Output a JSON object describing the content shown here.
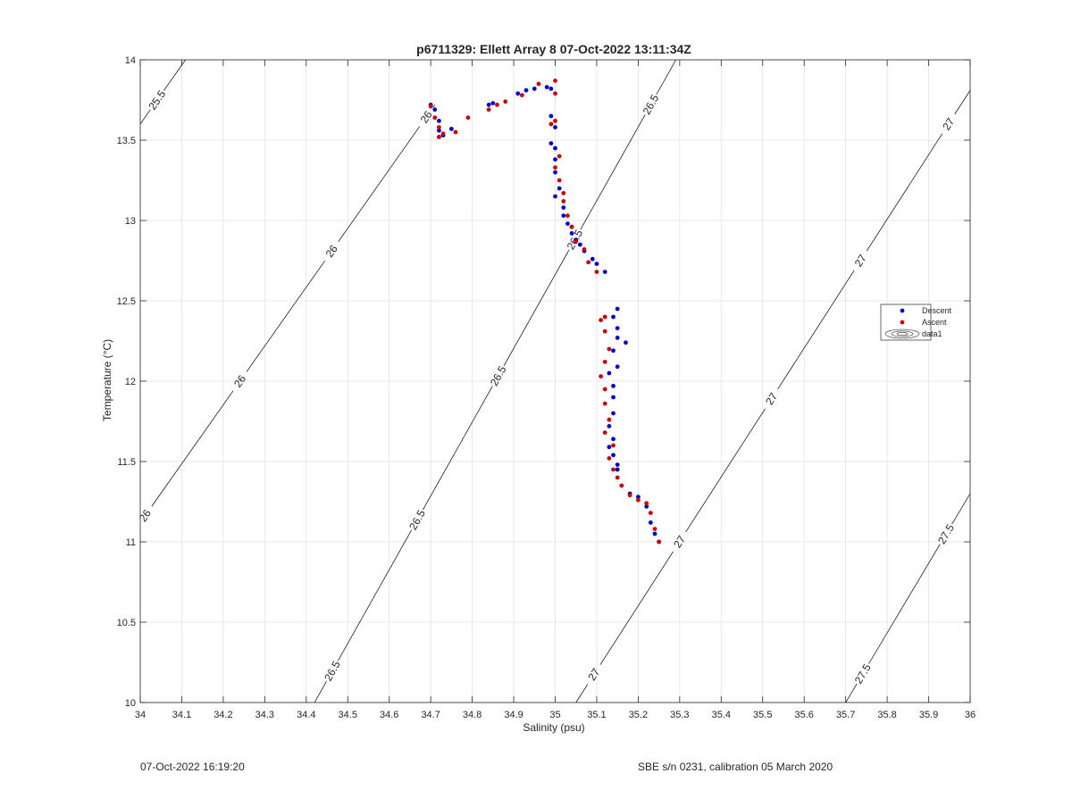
{
  "chart_data": {
    "type": "scatter",
    "title": "p6711329: Ellett Array 8 07-Oct-2022 13:11:34Z",
    "xlabel": "Salinity (psu)",
    "ylabel": "Temperature (°C)",
    "xlim": [
      34,
      36
    ],
    "ylim": [
      10,
      14
    ],
    "xticks": [
      "34",
      "34.1",
      "34.2",
      "34.3",
      "34.4",
      "34.5",
      "34.6",
      "34.7",
      "34.8",
      "34.9",
      "35",
      "35.1",
      "35.2",
      "35.3",
      "35.4",
      "35.5",
      "35.6",
      "35.7",
      "35.8",
      "35.9",
      "36"
    ],
    "yticks": [
      "10",
      "10.5",
      "11",
      "11.5",
      "12",
      "12.5",
      "13",
      "13.5",
      "14"
    ],
    "grid": true,
    "legend_position": "right",
    "legend": [
      "Descent",
      "Ascent",
      "data1"
    ],
    "colors": {
      "descent": "#0000cc",
      "ascent": "#cc0000",
      "contour": "#000000",
      "grid": "#e3e3e3"
    },
    "contours": [
      {
        "label": "25.5",
        "points": [
          [
            34.0,
            13.6
          ],
          [
            34.109,
            14.0
          ]
        ],
        "label_at": [
          [
            34.04,
            13.75
          ]
        ]
      },
      {
        "label": "26",
        "points": [
          [
            34.0,
            11.12
          ],
          [
            34.71,
            13.72
          ]
        ],
        "label_at": [
          [
            34.035,
            11.12
          ],
          [
            34.24,
            12.0
          ],
          [
            34.455,
            12.82
          ],
          [
            34.675,
            13.67
          ]
        ]
      },
      {
        "label": "26.5",
        "points": [
          [
            34.42,
            10.0
          ],
          [
            35.291,
            14.0
          ]
        ],
        "label_at": [
          [
            34.46,
            10.2
          ],
          [
            34.665,
            11.14
          ],
          [
            34.885,
            12.0
          ],
          [
            35.075,
            12.84
          ],
          [
            35.3,
            13.62
          ]
        ]
      },
      {
        "label": "27",
        "points": [
          [
            35.05,
            10.0
          ],
          [
            36.0,
            13.81
          ]
        ],
        "label_at": [
          [
            35.09,
            10.18
          ],
          [
            35.3,
            11.0
          ],
          [
            35.515,
            11.9
          ],
          [
            35.73,
            12.76
          ],
          [
            35.96,
            13.58
          ]
        ]
      },
      {
        "label": "27.5",
        "points": [
          [
            35.7,
            10.0
          ],
          [
            36.0,
            11.3
          ]
        ],
        "label_at": [
          [
            35.74,
            10.18
          ],
          [
            35.96,
            11.02
          ]
        ]
      }
    ],
    "series": [
      {
        "name": "Descent",
        "x": [
          34.7,
          34.71,
          34.72,
          34.72,
          34.73,
          34.72,
          34.75,
          34.84,
          34.85,
          34.91,
          34.93,
          34.95,
          34.98,
          34.99,
          34.99,
          35.0,
          34.99,
          35.0,
          35.0,
          35.0,
          35.01,
          35.0,
          35.02,
          35.02,
          35.03,
          35.04,
          35.04,
          35.05,
          35.06,
          35.07,
          35.09,
          35.1,
          35.12,
          35.15,
          35.14,
          35.15,
          35.17,
          35.15,
          35.14,
          35.15,
          35.13,
          35.14,
          35.14,
          35.14,
          35.13,
          35.14,
          35.13,
          35.14,
          35.15,
          35.15,
          35.18,
          35.2,
          35.22,
          35.23,
          35.24,
          35.25
        ],
        "y": [
          13.72,
          13.69,
          13.62,
          13.56,
          13.53,
          13.52,
          13.57,
          13.72,
          13.73,
          13.79,
          13.81,
          13.82,
          13.83,
          13.82,
          13.65,
          13.58,
          13.48,
          13.45,
          13.38,
          13.3,
          13.2,
          13.15,
          13.08,
          13.03,
          12.98,
          12.92,
          12.96,
          12.88,
          12.85,
          12.81,
          12.76,
          12.73,
          12.68,
          12.45,
          12.4,
          12.33,
          12.24,
          12.27,
          12.19,
          12.09,
          12.05,
          11.97,
          11.9,
          11.8,
          11.72,
          11.64,
          11.59,
          11.54,
          11.48,
          11.45,
          11.3,
          11.28,
          11.22,
          11.12,
          11.05,
          11.0
        ]
      },
      {
        "name": "Ascent",
        "x": [
          34.7,
          34.71,
          34.72,
          34.72,
          34.73,
          34.76,
          34.79,
          34.84,
          34.86,
          34.88,
          34.92,
          34.96,
          35.0,
          35.0,
          35.0,
          34.99,
          35.01,
          35.0,
          35.01,
          35.02,
          35.02,
          35.03,
          35.04,
          35.05,
          35.07,
          35.08,
          35.1,
          35.12,
          35.11,
          35.12,
          35.13,
          35.12,
          35.11,
          35.12,
          35.12,
          35.13,
          35.12,
          35.14,
          35.13,
          35.14,
          35.15,
          35.16,
          35.18,
          35.2,
          35.22,
          35.23,
          35.24,
          35.25
        ],
        "y": [
          13.71,
          13.64,
          13.58,
          13.52,
          13.54,
          13.55,
          13.64,
          13.69,
          13.72,
          13.74,
          13.78,
          13.85,
          13.87,
          13.79,
          13.62,
          13.6,
          13.4,
          13.33,
          13.25,
          13.17,
          13.12,
          13.03,
          12.96,
          12.87,
          12.82,
          12.74,
          12.68,
          12.4,
          12.38,
          12.31,
          12.2,
          12.12,
          12.03,
          11.95,
          11.86,
          11.76,
          11.68,
          11.6,
          11.52,
          11.45,
          11.4,
          11.35,
          11.29,
          11.26,
          11.24,
          11.18,
          11.08,
          11.0
        ]
      }
    ]
  },
  "footer": {
    "left": "07-Oct-2022 16:19:20",
    "right": "SBE s/n 0231, calibration 05 March 2020"
  }
}
